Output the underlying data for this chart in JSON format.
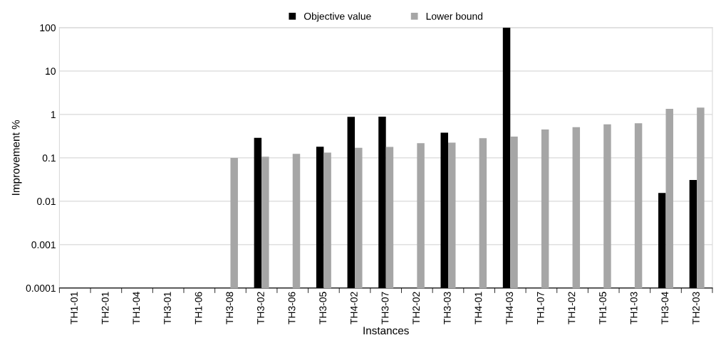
{
  "chart_data": {
    "type": "bar",
    "xlabel": "Instances",
    "ylabel": "Improvement %",
    "categories": [
      "TH1-01",
      "TH2-01",
      "TH1-04",
      "TH3-01",
      "TH1-06",
      "TH3-08",
      "TH3-02",
      "TH3-06",
      "TH3-05",
      "TH4-02",
      "TH3-07",
      "TH2-02",
      "TH3-03",
      "TH4-01",
      "TH4-03",
      "TH1-07",
      "TH1-02",
      "TH1-05",
      "TH1-03",
      "TH3-04",
      "TH2-03"
    ],
    "series": [
      {
        "name": "Objective value",
        "color": "#000000",
        "values": [
          null,
          null,
          null,
          null,
          null,
          null,
          0.29,
          null,
          0.18,
          0.88,
          0.89,
          null,
          0.38,
          null,
          100,
          null,
          null,
          null,
          null,
          0.0155,
          0.031
        ]
      },
      {
        "name": "Lower bound",
        "color": "#a6a6a6",
        "values": [
          null,
          null,
          null,
          null,
          null,
          0.1,
          0.106,
          0.124,
          0.132,
          0.17,
          0.178,
          0.218,
          0.224,
          0.284,
          0.31,
          0.45,
          0.51,
          0.59,
          0.63,
          1.35,
          1.44
        ]
      }
    ],
    "log": "y",
    "ylim": [
      0.0001,
      100
    ],
    "yticks": [
      0.0001,
      0.001,
      0.01,
      0.1,
      1,
      10,
      100
    ],
    "grid": "y",
    "legend": "top"
  }
}
